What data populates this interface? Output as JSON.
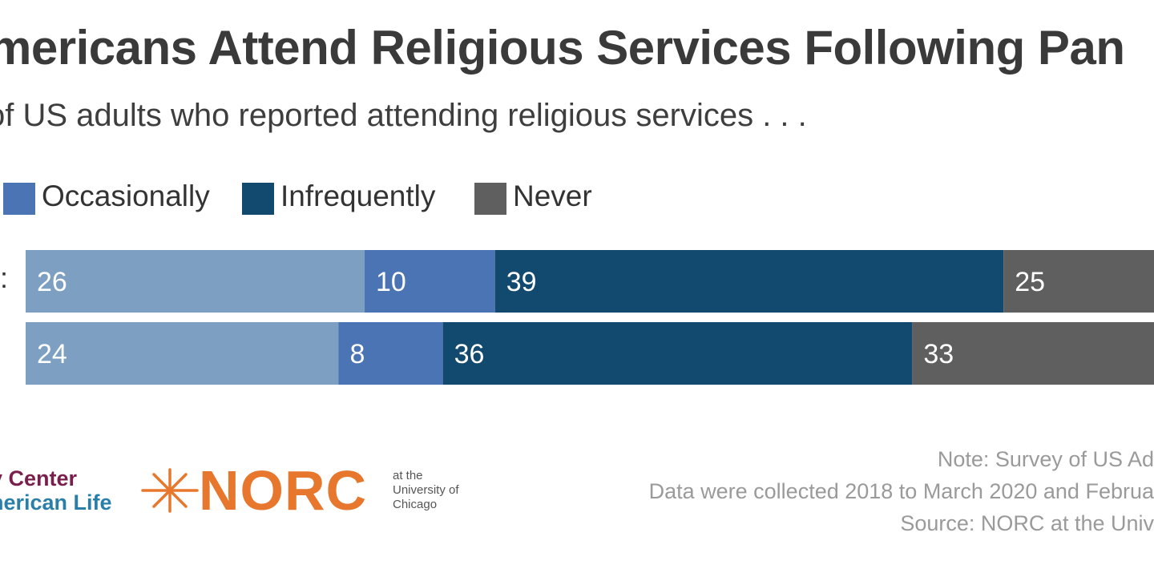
{
  "title": "mericans Attend Religious Services Following Pan",
  "subtitle": "of US adults who reported attending religious services . . .",
  "legend": [
    {
      "label": "Occasionally",
      "color": "#4a74b4"
    },
    {
      "label": "Infrequently",
      "color": "#124a6f"
    },
    {
      "label": "Never",
      "color": "#5f5f5f"
    }
  ],
  "chart_data": {
    "type": "bar",
    "orientation": "horizontal",
    "stacked": true,
    "categories": [
      "",
      ""
    ],
    "series": [
      {
        "name": "",
        "color": "#7c9fc2",
        "values": [
          26,
          24
        ]
      },
      {
        "name": "Occasionally",
        "color": "#4a74b4",
        "values": [
          10,
          8
        ]
      },
      {
        "name": "Infrequently",
        "color": "#124a6f",
        "values": [
          39,
          36
        ]
      },
      {
        "name": "Never",
        "color": "#5f5f5f",
        "values": [
          25,
          33
        ]
      }
    ],
    "title": "mericans Attend Religious Services Following Pan",
    "subtitle": "of US adults who reported attending religious services . . .",
    "grid": false,
    "legend_position": "top-left"
  },
  "row_stub": ":",
  "footer": {
    "org_line1": "y Center",
    "org_line2": "nerican Life",
    "norc_name": "NORC",
    "norc_sub1": "at the",
    "norc_sub2": "University of",
    "norc_sub3": "Chicago",
    "note_line1": "Note: Survey of US Ad",
    "note_line2": "Data were collected 2018 to March 2020 and Februa",
    "note_line3": "Source: NORC at the Univ"
  }
}
